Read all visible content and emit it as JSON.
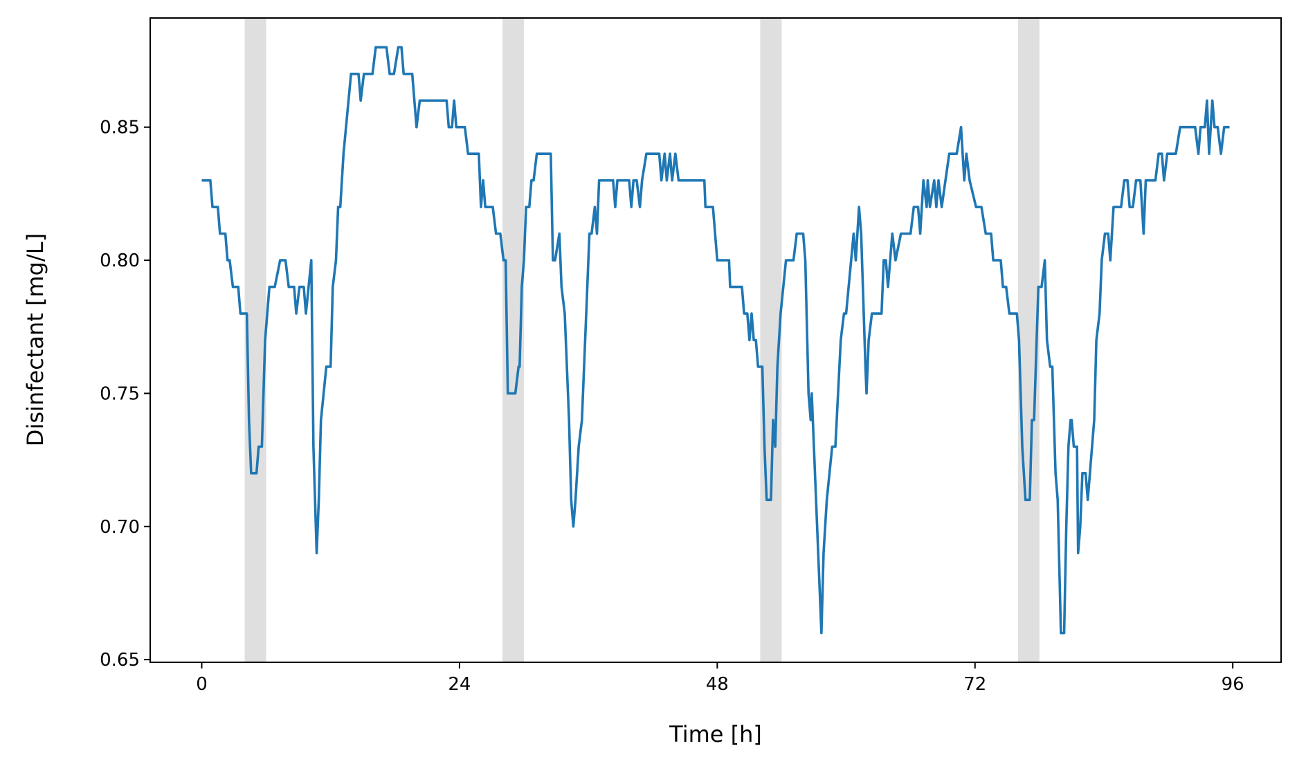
{
  "chart_data": {
    "type": "line",
    "xlabel": "Time [h]",
    "ylabel": "Disinfectant [mg/L]",
    "color": "#1f77b4",
    "span_color": "#dfdfdf",
    "shaded_spans": [
      [
        4,
        6
      ],
      [
        28,
        30
      ],
      [
        52,
        54
      ],
      [
        76,
        78
      ]
    ],
    "xlim": [
      -4.8,
      100.5
    ],
    "ylim": [
      0.649,
      0.891
    ],
    "xticks": [
      0,
      24,
      48,
      72,
      96
    ],
    "yticks": [
      0.65,
      {
        "value": 0.7,
        "label": "0.70"
      },
      0.75,
      {
        "value": 0.8,
        "label": "0.80"
      },
      0.85
    ],
    "x": [
      0,
      0.8,
      1,
      1.5,
      1.7,
      2.2,
      2.4,
      2.6,
      2.9,
      3.4,
      3.6,
      4.2,
      4.4,
      4.6,
      5.1,
      5.3,
      5.6,
      5.9,
      6.3,
      6.8,
      7.3,
      7.8,
      8.1,
      8.6,
      8.8,
      9.1,
      9.5,
      9.7,
      10.2,
      10.4,
      10.7,
      10.9,
      11.1,
      11.6,
      12,
      12.2,
      12.5,
      12.7,
      12.9,
      13.2,
      13.9,
      14.6,
      14.8,
      15.1,
      15.9,
      16.2,
      17.2,
      17.5,
      17.9,
      18.3,
      18.6,
      18.8,
      19.6,
      19.8,
      20,
      20.3,
      22.8,
      23,
      23.3,
      23.5,
      23.7,
      24.5,
      24.8,
      25.8,
      26,
      26.2,
      26.4,
      27.1,
      27.4,
      27.8,
      28.1,
      28.3,
      28.5,
      29.2,
      29.5,
      29.6,
      29.8,
      30,
      30.2,
      30.5,
      30.7,
      30.9,
      31.2,
      32.5,
      32.7,
      32.9,
      33.3,
      33.5,
      33.8,
      34.2,
      34.4,
      34.6,
      34.8,
      35.1,
      35.4,
      35.6,
      35.9,
      36.1,
      36.3,
      36.6,
      36.8,
      37,
      38.3,
      38.5,
      38.7,
      39.8,
      40,
      40.2,
      40.5,
      40.8,
      41,
      41.4,
      42.6,
      42.8,
      43.1,
      43.3,
      43.6,
      43.8,
      44.1,
      44.4,
      46.8,
      46.9,
      47.6,
      48,
      49.1,
      49.2,
      50.3,
      50.5,
      50.8,
      51,
      51.2,
      51.4,
      51.6,
      51.8,
      52.2,
      52.4,
      52.6,
      53,
      53.2,
      53.4,
      53.6,
      53.9,
      54.4,
      55.1,
      55.4,
      56,
      56.2,
      56.5,
      56.7,
      56.8,
      57.3,
      57.7,
      57.9,
      58.2,
      58.7,
      59,
      59.5,
      59.8,
      60,
      60.7,
      60.9,
      61.2,
      61.4,
      61.8,
      61.9,
      62.1,
      62.4,
      63.3,
      63.5,
      63.7,
      63.9,
      64.3,
      64.6,
      65.1,
      66,
      66.3,
      66.7,
      66.9,
      67.2,
      67.5,
      67.6,
      67.8,
      68.2,
      68.4,
      68.6,
      68.9,
      69.6,
      70.3,
      70.7,
      71,
      71.2,
      71.5,
      72.1,
      72.6,
      73,
      73.5,
      73.7,
      74.4,
      74.6,
      74.9,
      75.2,
      75.9,
      76.1,
      76.4,
      76.7,
      77.1,
      77.3,
      77.5,
      77.9,
      78.2,
      78.5,
      78.7,
      79,
      79.2,
      79.5,
      79.7,
      80,
      80.3,
      80.5,
      80.7,
      80.9,
      81,
      81.2,
      81.5,
      81.6,
      81.8,
      82,
      82.3,
      82.5,
      82.9,
      83.1,
      83.3,
      83.6,
      83.8,
      84.1,
      84.4,
      84.6,
      84.9,
      85.6,
      85.9,
      86.2,
      86.4,
      86.7,
      87,
      87.4,
      87.7,
      87.9,
      88.8,
      89.1,
      89.4,
      89.6,
      89.9,
      90.7,
      91.1,
      92.5,
      92.8,
      93,
      93.4,
      93.6,
      93.8,
      94.1,
      94.3,
      94.6,
      94.9,
      95.2,
      95.7
    ],
    "values": [
      0.83,
      0.83,
      0.82,
      0.82,
      0.81,
      0.81,
      0.8,
      0.8,
      0.79,
      0.79,
      0.78,
      0.78,
      0.74,
      0.72,
      0.72,
      0.73,
      0.73,
      0.77,
      0.79,
      0.79,
      0.8,
      0.8,
      0.79,
      0.79,
      0.78,
      0.79,
      0.79,
      0.78,
      0.8,
      0.73,
      0.69,
      0.71,
      0.74,
      0.76,
      0.76,
      0.79,
      0.8,
      0.82,
      0.82,
      0.84,
      0.87,
      0.87,
      0.86,
      0.87,
      0.87,
      0.88,
      0.88,
      0.87,
      0.87,
      0.88,
      0.88,
      0.87,
      0.87,
      0.86,
      0.85,
      0.86,
      0.86,
      0.85,
      0.85,
      0.86,
      0.85,
      0.85,
      0.84,
      0.84,
      0.82,
      0.83,
      0.82,
      0.82,
      0.81,
      0.81,
      0.8,
      0.8,
      0.75,
      0.75,
      0.76,
      0.76,
      0.79,
      0.8,
      0.82,
      0.82,
      0.83,
      0.83,
      0.84,
      0.84,
      0.8,
      0.8,
      0.81,
      0.79,
      0.78,
      0.74,
      0.71,
      0.7,
      0.71,
      0.73,
      0.74,
      0.76,
      0.79,
      0.81,
      0.81,
      0.82,
      0.81,
      0.83,
      0.83,
      0.82,
      0.83,
      0.83,
      0.82,
      0.83,
      0.83,
      0.82,
      0.83,
      0.84,
      0.84,
      0.83,
      0.84,
      0.83,
      0.84,
      0.83,
      0.84,
      0.83,
      0.83,
      0.82,
      0.82,
      0.8,
      0.8,
      0.79,
      0.79,
      0.78,
      0.78,
      0.77,
      0.78,
      0.77,
      0.77,
      0.76,
      0.76,
      0.73,
      0.71,
      0.71,
      0.74,
      0.73,
      0.76,
      0.78,
      0.8,
      0.8,
      0.81,
      0.81,
      0.8,
      0.75,
      0.74,
      0.75,
      0.7,
      0.66,
      0.69,
      0.71,
      0.73,
      0.73,
      0.77,
      0.78,
      0.78,
      0.81,
      0.8,
      0.82,
      0.81,
      0.76,
      0.75,
      0.77,
      0.78,
      0.78,
      0.8,
      0.8,
      0.79,
      0.81,
      0.8,
      0.81,
      0.81,
      0.82,
      0.82,
      0.81,
      0.83,
      0.82,
      0.83,
      0.82,
      0.83,
      0.82,
      0.83,
      0.82,
      0.84,
      0.84,
      0.85,
      0.83,
      0.84,
      0.83,
      0.82,
      0.82,
      0.81,
      0.81,
      0.8,
      0.8,
      0.79,
      0.79,
      0.78,
      0.78,
      0.77,
      0.73,
      0.71,
      0.71,
      0.74,
      0.74,
      0.79,
      0.79,
      0.8,
      0.77,
      0.76,
      0.76,
      0.72,
      0.71,
      0.66,
      0.66,
      0.7,
      0.73,
      0.74,
      0.74,
      0.73,
      0.73,
      0.69,
      0.7,
      0.72,
      0.72,
      0.71,
      0.73,
      0.74,
      0.77,
      0.78,
      0.8,
      0.81,
      0.81,
      0.8,
      0.82,
      0.82,
      0.83,
      0.83,
      0.82,
      0.82,
      0.83,
      0.83,
      0.81,
      0.83,
      0.83,
      0.84,
      0.84,
      0.83,
      0.84,
      0.84,
      0.85,
      0.85,
      0.84,
      0.85,
      0.85,
      0.86,
      0.84,
      0.86,
      0.85,
      0.85,
      0.84,
      0.85,
      0.85
    ]
  }
}
